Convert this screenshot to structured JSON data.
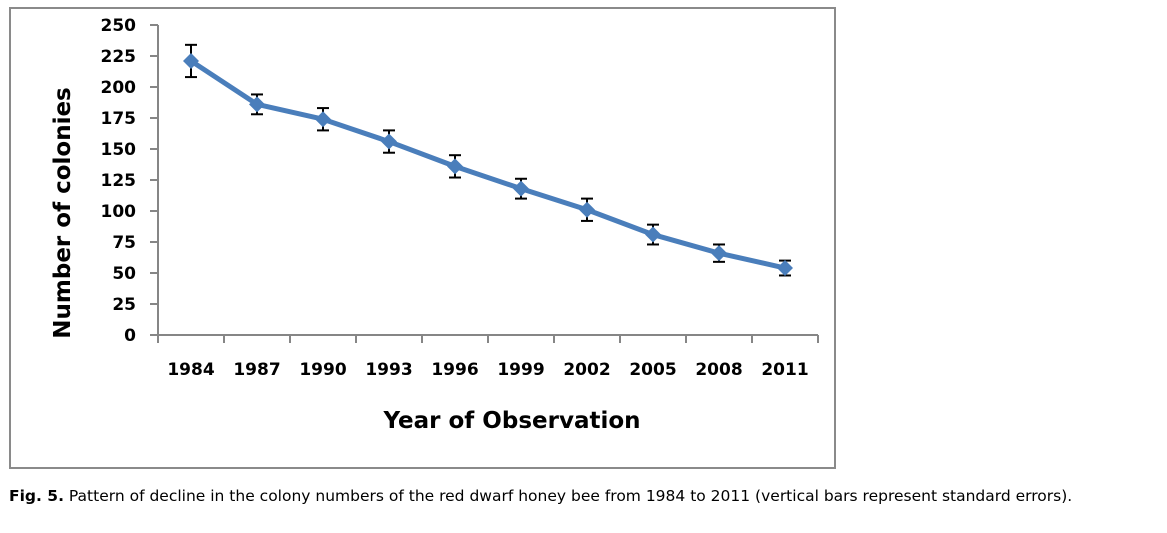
{
  "chart_data": {
    "type": "line",
    "title": "",
    "xlabel": "Year of Observation",
    "ylabel": "Number of colonies",
    "categories": [
      "1984",
      "1987",
      "1990",
      "1993",
      "1996",
      "1999",
      "2002",
      "2005",
      "2008",
      "2011"
    ],
    "series": [
      {
        "name": "Colony numbers",
        "color": "#4a7ebb",
        "marker": "diamond",
        "values": [
          221,
          186,
          174,
          156,
          136,
          118,
          101,
          81,
          66,
          54
        ],
        "error": [
          13,
          8,
          9,
          9,
          9,
          8,
          9,
          8,
          7,
          6
        ]
      }
    ],
    "yticks": [
      "0",
      "25",
      "50",
      "75",
      "100",
      "125",
      "150",
      "175",
      "200",
      "225",
      "250"
    ],
    "ylim": [
      0,
      250
    ],
    "grid": false,
    "legend": "none"
  },
  "caption": {
    "label": "Fig. 5.",
    "text": " Pattern of decline in the colony numbers of the red dwarf honey bee from 1984 to 2011 (vertical bars represent standard errors)."
  }
}
